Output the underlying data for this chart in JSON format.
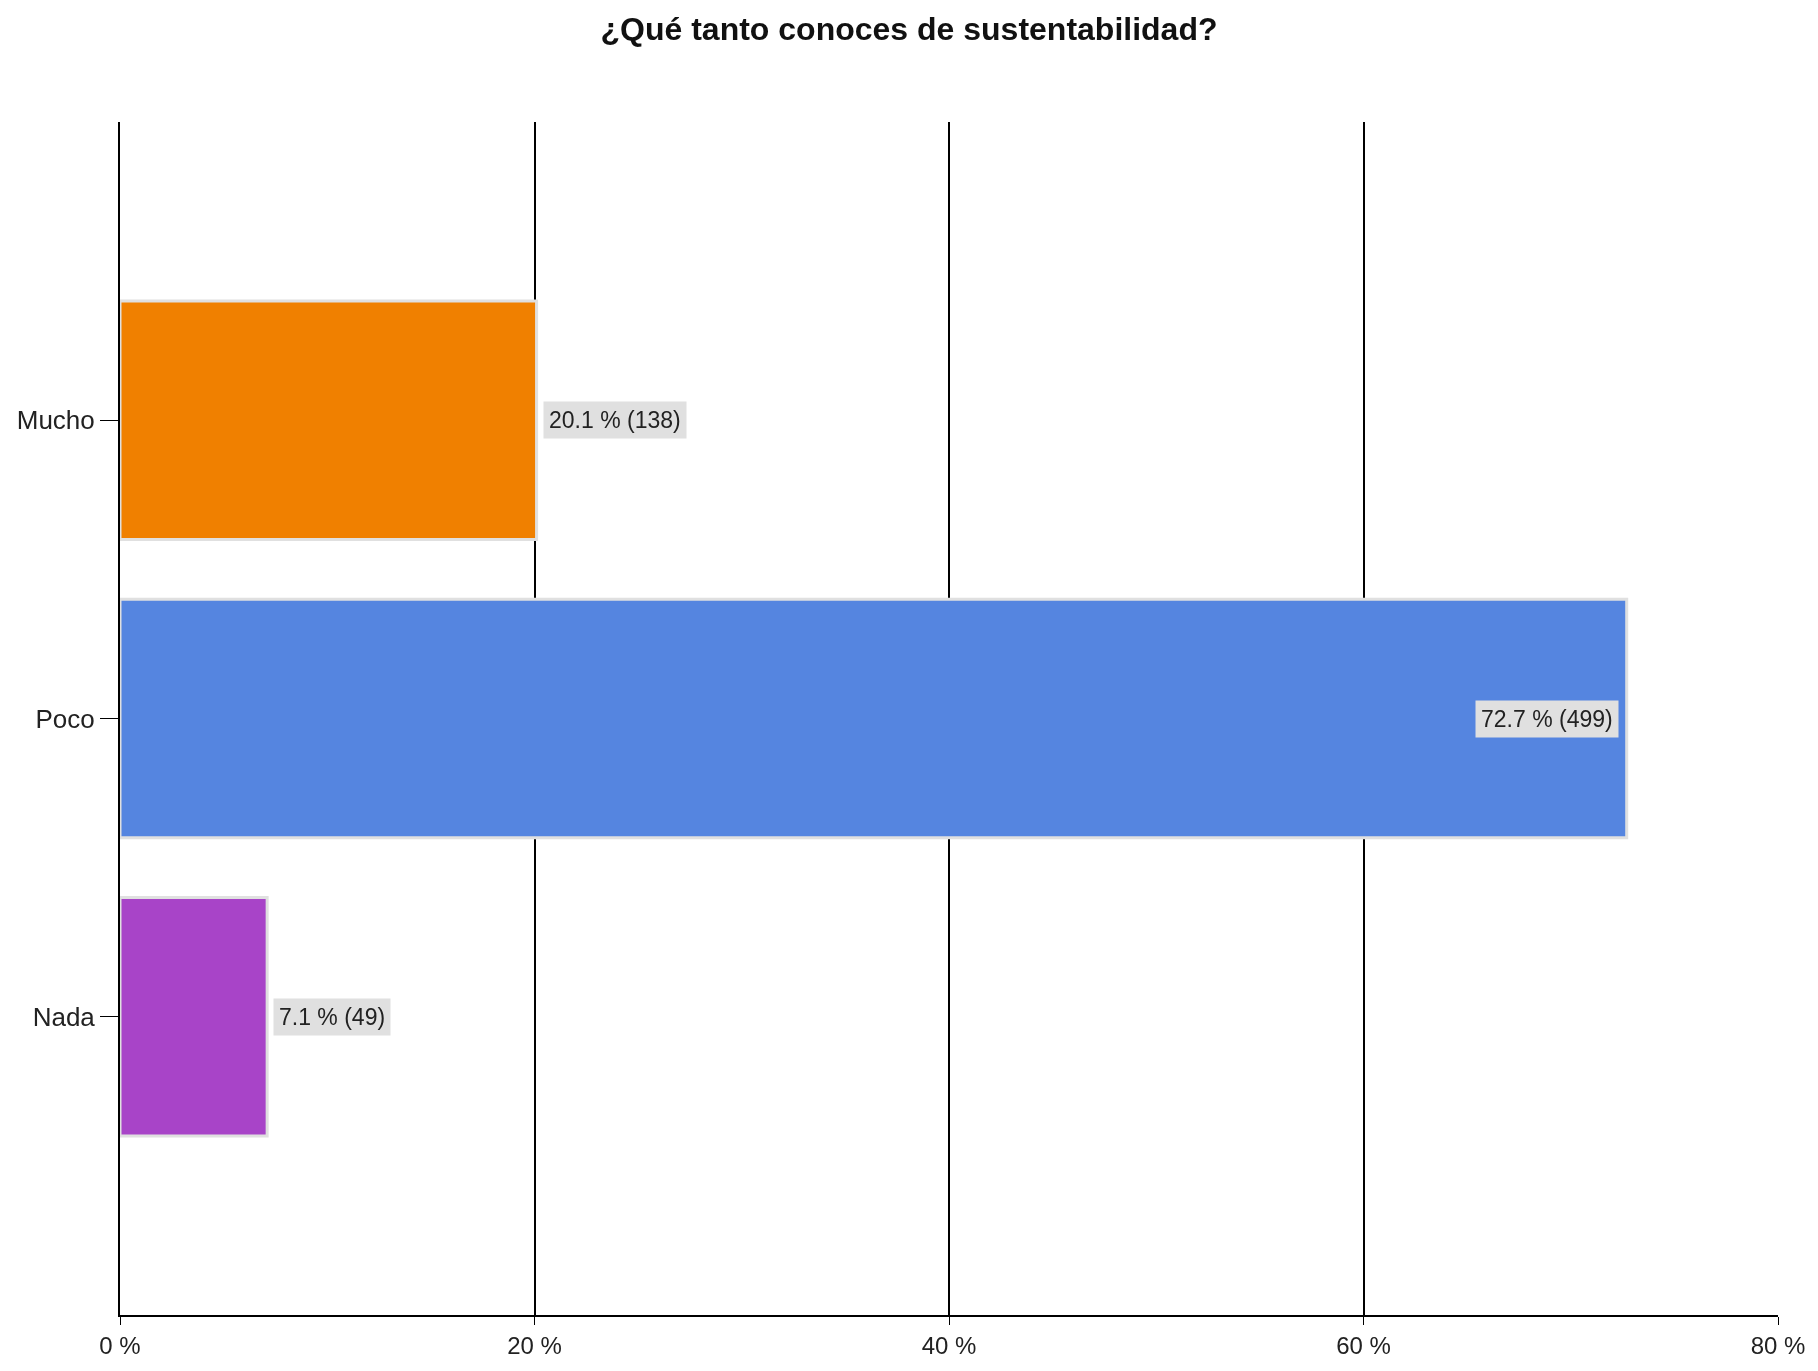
{
  "chart_data": {
    "type": "bar",
    "orientation": "horizontal",
    "title": "¿Qué tanto conoces de sustentabilidad?",
    "categories": [
      "Mucho",
      "Poco",
      "Nada"
    ],
    "values": [
      20.1,
      72.7,
      7.1
    ],
    "colors": [
      "#f08000",
      "#5585e0",
      "#a844c8"
    ],
    "value_labels": [
      "20.1 % (138)",
      "72.7 % (499)",
      "7.1 % (49)"
    ],
    "xlim": [
      0,
      80
    ],
    "xticks": [
      {
        "value": 0,
        "label": "0 %"
      },
      {
        "value": 20,
        "label": "20 %"
      },
      {
        "value": 40,
        "label": "40 %"
      },
      {
        "value": 60,
        "label": "60 %"
      },
      {
        "value": 80,
        "label": "80 %"
      }
    ],
    "grid": "x"
  }
}
